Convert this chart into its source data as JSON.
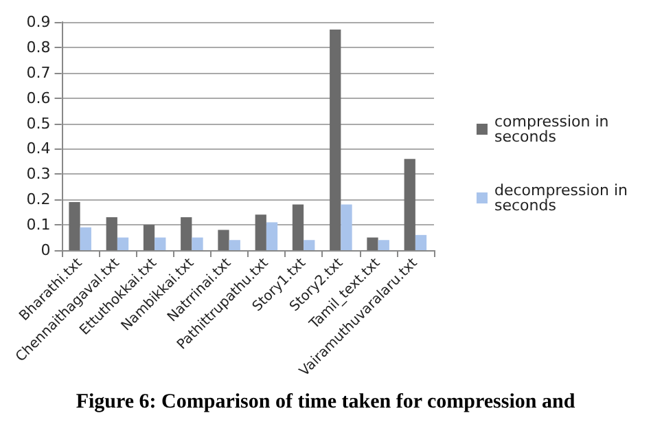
{
  "chart_data": {
    "type": "bar",
    "categories": [
      "Bharathi.txt",
      "Chennaithagaval.txt",
      "Ettuthokkai.txt",
      "Nambikkai.txt",
      "Natrrinai.txt",
      "Pathittrupathu.txt",
      "Story1.txt",
      "Story2.txt",
      "Tamil_text.txt",
      "Vairamuthuvaralaru.txt"
    ],
    "series": [
      {
        "name": "compression in seconds",
        "color": "#6b6b6b",
        "values": [
          0.19,
          0.13,
          0.1,
          0.13,
          0.08,
          0.14,
          0.18,
          0.87,
          0.05,
          0.36
        ]
      },
      {
        "name": "decompression in seconds",
        "color": "#a9c4ec",
        "values": [
          0.09,
          0.05,
          0.05,
          0.05,
          0.04,
          0.11,
          0.04,
          0.18,
          0.04,
          0.06
        ]
      }
    ],
    "ylim": [
      0,
      0.9
    ],
    "yticks": [
      0,
      0.1,
      0.2,
      0.3,
      0.4,
      0.5,
      0.6,
      0.7,
      0.8,
      0.9
    ],
    "grid": "y",
    "legend": "right",
    "annotations": [
      "Figure 6: Comparison of time taken for compression and"
    ]
  }
}
